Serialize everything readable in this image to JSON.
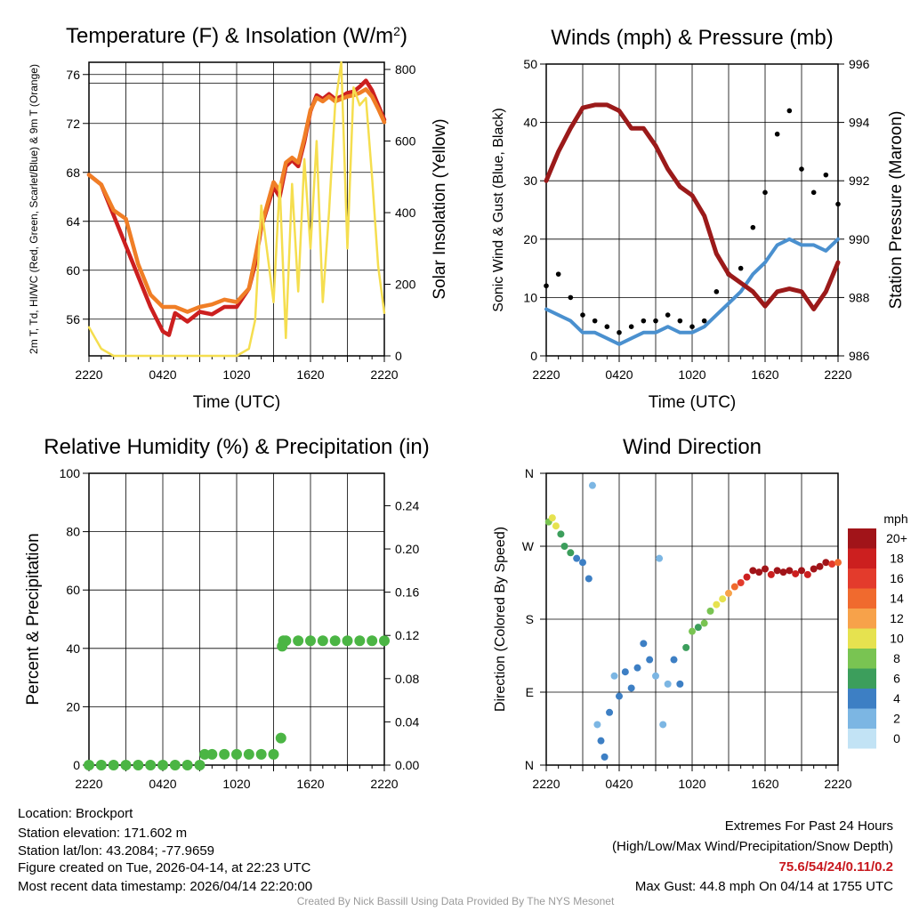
{
  "chart_data": [
    {
      "type": "line",
      "title": "Temperature (F) & Insolation (W/m²)",
      "xlabel": "Time (UTC)",
      "ylabel_left": "2m T, Td, HI/WC (Red, Green, Scarlet/Blue) & 9m T (Orange)",
      "ylabel_right": "Solar Insolation (Yellow)",
      "x_ticks": [
        "2220",
        "0420",
        "1020",
        "1620",
        "2220"
      ],
      "ylim_left": [
        53,
        77
      ],
      "y_ticks_left": [
        56,
        60,
        64,
        68,
        72,
        76
      ],
      "ylim_right": [
        0,
        820
      ],
      "y_ticks_right": [
        0,
        200,
        400,
        600,
        800
      ],
      "x": [
        0,
        1,
        2,
        3,
        4,
        5,
        6,
        6.5,
        7,
        8,
        9,
        10,
        11,
        12,
        13,
        13.5,
        14,
        15,
        15.5,
        16,
        16.5,
        17,
        17.5,
        18,
        18.5,
        19,
        19.5,
        20,
        20.5,
        21,
        21.5,
        22,
        22.5,
        23,
        23.5,
        24
      ],
      "series": [
        {
          "name": "2m Temperature",
          "color": "#cc1f1f",
          "values": [
            67.8,
            67,
            64.5,
            62,
            59.5,
            57,
            55,
            54.7,
            56.5,
            55.8,
            56.6,
            56.4,
            57,
            57,
            58.5,
            60.5,
            63.5,
            66.8,
            66,
            68.5,
            69,
            68.5,
            70.5,
            73,
            74.3,
            74,
            74.4,
            74,
            74.2,
            74.5,
            74.6,
            75,
            75.5,
            74.7,
            73.5,
            72.3
          ]
        },
        {
          "name": "9m Temperature",
          "color": "#f07e26",
          "values": [
            67.8,
            67,
            64.9,
            64.2,
            60.5,
            58,
            57,
            57,
            57,
            56.6,
            57,
            57.2,
            57.6,
            57.4,
            58.5,
            61,
            63.6,
            67.2,
            66.5,
            68.8,
            69.2,
            68.8,
            70.8,
            73.1,
            74.1,
            73.8,
            74.2,
            73.8,
            74,
            74.2,
            74.3,
            74.5,
            74.8,
            74.2,
            73.2,
            72.1
          ]
        },
        {
          "name": "Solar Insolation",
          "color": "#f5de4f",
          "axis": "right",
          "values": [
            80,
            20,
            0,
            0,
            0,
            0,
            0,
            0,
            0,
            0,
            0,
            0,
            0,
            0,
            20,
            100,
            420,
            150,
            480,
            50,
            480,
            180,
            550,
            300,
            600,
            150,
            400,
            700,
            820,
            300,
            750,
            700,
            720,
            500,
            250,
            120
          ]
        }
      ]
    },
    {
      "type": "line",
      "title": "Winds (mph) & Pressure (mb)",
      "xlabel": "Time (UTC)",
      "ylabel_left": "Sonic Wind & Gust (Blue, Black)",
      "ylabel_right": "Station Pressure (Maroon)",
      "x_ticks": [
        "2220",
        "0420",
        "1020",
        "1620",
        "2220"
      ],
      "ylim_left": [
        0,
        50
      ],
      "y_ticks_left": [
        0,
        10,
        20,
        30,
        40,
        50
      ],
      "ylim_right": [
        986,
        996
      ],
      "y_ticks_right": [
        986,
        988,
        990,
        992,
        994,
        996
      ],
      "x": [
        0,
        1,
        2,
        3,
        4,
        5,
        6,
        7,
        8,
        9,
        10,
        11,
        12,
        13,
        14,
        15,
        16,
        17,
        18,
        19,
        20,
        21,
        22,
        23,
        24
      ],
      "series": [
        {
          "name": "Sonic Wind",
          "color": "#4a90cf",
          "values": [
            8,
            7,
            6,
            4,
            4,
            3,
            2,
            3,
            4,
            4,
            5,
            4,
            4,
            5,
            7,
            9,
            11,
            14,
            16,
            19,
            20,
            19,
            19,
            18,
            20
          ]
        },
        {
          "name": "Gust",
          "color": "#000000",
          "style": "dots",
          "values": [
            12,
            14,
            10,
            7,
            6,
            5,
            4,
            5,
            6,
            6,
            7,
            6,
            5,
            6,
            11,
            14,
            15,
            22,
            28,
            38,
            42,
            32,
            28,
            31,
            26
          ]
        },
        {
          "name": "Station Pressure",
          "color": "#9b1a1a",
          "axis": "right",
          "values": [
            992,
            993,
            993.8,
            994.5,
            994.6,
            994.6,
            994.4,
            993.8,
            993.8,
            993.2,
            992.4,
            991.8,
            991.5,
            990.8,
            989.5,
            988.8,
            988.5,
            988.2,
            987.7,
            988.2,
            988.3,
            988.2,
            987.6,
            988.2,
            989.2
          ]
        }
      ]
    },
    {
      "type": "scatter",
      "title": "Relative Humidity (%) & Precipitation (in)",
      "ylabel_left": "Percent & Precipitation",
      "x_ticks": [
        "2220",
        "0420",
        "1020",
        "1620",
        "2220"
      ],
      "ylim_left": [
        0,
        100
      ],
      "y_ticks_left": [
        0,
        20,
        40,
        60,
        80,
        100
      ],
      "ylim_right": [
        0,
        0.27
      ],
      "y_ticks_right": [
        "0.00",
        "0.04",
        "0.08",
        "0.12",
        "0.16",
        "0.20",
        "0.24"
      ],
      "series": [
        {
          "name": "Precipitation",
          "color": "#4bb544",
          "axis": "right",
          "x": [
            0,
            1,
            2,
            3,
            4,
            5,
            6,
            7,
            8,
            9,
            9.4,
            10,
            11,
            12,
            13,
            14,
            15,
            15.6,
            15.7,
            15.8,
            16,
            17,
            18,
            19,
            20,
            21,
            22,
            23,
            24
          ],
          "values": [
            0,
            0,
            0,
            0,
            0,
            0,
            0,
            0,
            0,
            0,
            0.01,
            0.01,
            0.01,
            0.01,
            0.01,
            0.01,
            0.01,
            0.025,
            0.11,
            0.115,
            0.115,
            0.115,
            0.115,
            0.115,
            0.115,
            0.115,
            0.115,
            0.115,
            0.115
          ]
        }
      ]
    },
    {
      "type": "scatter",
      "title": "Wind Direction",
      "ylabel": "Direction (Colored By Speed)",
      "x_ticks": [
        "2220",
        "0420",
        "1020",
        "1620",
        "2220"
      ],
      "y_ticks": [
        "N",
        "E",
        "S",
        "W",
        "N"
      ],
      "ylim": [
        0,
        360
      ],
      "colorbar": {
        "title": "mph",
        "labels": [
          "20+",
          "18",
          "16",
          "14",
          "12",
          "10",
          "8",
          "6",
          "4",
          "2",
          "0"
        ],
        "colors": [
          "#a11419",
          "#cc1f1f",
          "#e33b2c",
          "#f06a2e",
          "#f7a24a",
          "#e6e24f",
          "#79c452",
          "#3c9e5c",
          "#3d7fc4",
          "#7cb6e3",
          "#c2e3f5"
        ]
      },
      "points": [
        {
          "x": 0.2,
          "dir": 300,
          "speed": 8
        },
        {
          "x": 0.5,
          "dir": 305,
          "speed": 9
        },
        {
          "x": 0.8,
          "dir": 295,
          "speed": 10
        },
        {
          "x": 1.2,
          "dir": 285,
          "speed": 6
        },
        {
          "x": 1.5,
          "dir": 270,
          "speed": 5
        },
        {
          "x": 2,
          "dir": 262,
          "speed": 5
        },
        {
          "x": 2.5,
          "dir": 255,
          "speed": 4
        },
        {
          "x": 3,
          "dir": 250,
          "speed": 4
        },
        {
          "x": 3.5,
          "dir": 230,
          "speed": 4
        },
        {
          "x": 3.8,
          "dir": 345,
          "speed": 1
        },
        {
          "x": 4.2,
          "dir": 50,
          "speed": 2
        },
        {
          "x": 4.5,
          "dir": 30,
          "speed": 3
        },
        {
          "x": 4.8,
          "dir": 10,
          "speed": 4
        },
        {
          "x": 5.2,
          "dir": 65,
          "speed": 3
        },
        {
          "x": 5.6,
          "dir": 110,
          "speed": 2
        },
        {
          "x": 6,
          "dir": 85,
          "speed": 3
        },
        {
          "x": 6.5,
          "dir": 115,
          "speed": 4
        },
        {
          "x": 7,
          "dir": 95,
          "speed": 4
        },
        {
          "x": 7.5,
          "dir": 120,
          "speed": 3
        },
        {
          "x": 8,
          "dir": 150,
          "speed": 4
        },
        {
          "x": 8.5,
          "dir": 130,
          "speed": 3
        },
        {
          "x": 9,
          "dir": 110,
          "speed": 2
        },
        {
          "x": 9.3,
          "dir": 255,
          "speed": 1
        },
        {
          "x": 9.6,
          "dir": 50,
          "speed": 1
        },
        {
          "x": 10,
          "dir": 100,
          "speed": 2
        },
        {
          "x": 10.5,
          "dir": 130,
          "speed": 3
        },
        {
          "x": 11,
          "dir": 100,
          "speed": 4
        },
        {
          "x": 11.5,
          "dir": 145,
          "speed": 5
        },
        {
          "x": 12,
          "dir": 165,
          "speed": 7
        },
        {
          "x": 12.5,
          "dir": 170,
          "speed": 6
        },
        {
          "x": 13,
          "dir": 175,
          "speed": 8
        },
        {
          "x": 13.5,
          "dir": 190,
          "speed": 7
        },
        {
          "x": 14,
          "dir": 198,
          "speed": 9
        },
        {
          "x": 14.5,
          "dir": 205,
          "speed": 10
        },
        {
          "x": 15,
          "dir": 212,
          "speed": 12
        },
        {
          "x": 15.5,
          "dir": 220,
          "speed": 14
        },
        {
          "x": 16,
          "dir": 225,
          "speed": 16
        },
        {
          "x": 16.5,
          "dir": 232,
          "speed": 18
        },
        {
          "x": 17,
          "dir": 240,
          "speed": 20
        },
        {
          "x": 17.5,
          "dir": 238,
          "speed": 19
        },
        {
          "x": 18,
          "dir": 242,
          "speed": 20
        },
        {
          "x": 18.5,
          "dir": 235,
          "speed": 18
        },
        {
          "x": 19,
          "dir": 240,
          "speed": 20
        },
        {
          "x": 19.5,
          "dir": 238,
          "speed": 19
        },
        {
          "x": 20,
          "dir": 240,
          "speed": 20
        },
        {
          "x": 20.5,
          "dir": 236,
          "speed": 18
        },
        {
          "x": 21,
          "dir": 240,
          "speed": 20
        },
        {
          "x": 21.5,
          "dir": 235,
          "speed": 18
        },
        {
          "x": 22,
          "dir": 242,
          "speed": 20
        },
        {
          "x": 22.5,
          "dir": 245,
          "speed": 19
        },
        {
          "x": 23,
          "dir": 250,
          "speed": 20
        },
        {
          "x": 23.5,
          "dir": 248,
          "speed": 16
        },
        {
          "x": 24,
          "dir": 250,
          "speed": 14
        }
      ]
    }
  ],
  "info": {
    "location": "Location: Brockport",
    "elevation": "Station elevation: 171.602 m",
    "latlon": "Station lat/lon: 43.2084; -77.9659",
    "created": "Figure created on Tue, 2026-04-14, at 22:23 UTC",
    "recent": "Most recent data timestamp: 2026/04/14 22:20:00"
  },
  "extremes": {
    "title": "Extremes For Past 24 Hours",
    "subtitle": "(High/Low/Max Wind/Precipitation/Snow Depth)",
    "values": "75.6/54/24/0.11/0.2",
    "max_gust": "Max Gust: 44.8 mph On 04/14 at 1755 UTC"
  },
  "credit": "Created By Nick Bassill Using Data Provided By The NYS Mesonet"
}
